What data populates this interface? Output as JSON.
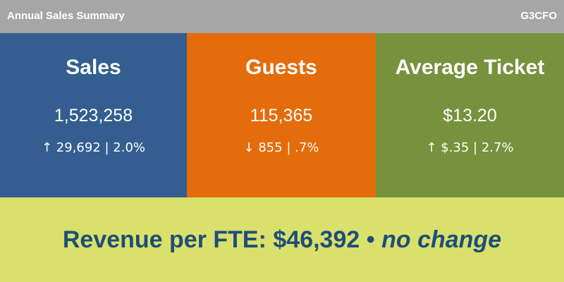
{
  "header": {
    "title": "Annual Sales Summary",
    "brand": "G3CFO"
  },
  "cards": [
    {
      "title": "Sales",
      "value": "1,523,258",
      "change": "↑ 29,692 | 2.0%"
    },
    {
      "title": "Guests",
      "value": "115,365",
      "change": "↓ 855 | .7%"
    },
    {
      "title": "Average Ticket",
      "value": "$13.20",
      "change": "↑ $.35 | 2.7%"
    }
  ],
  "footer": {
    "label": "Revenue per FTE: $46,392",
    "separator": "•",
    "note": "no change"
  }
}
